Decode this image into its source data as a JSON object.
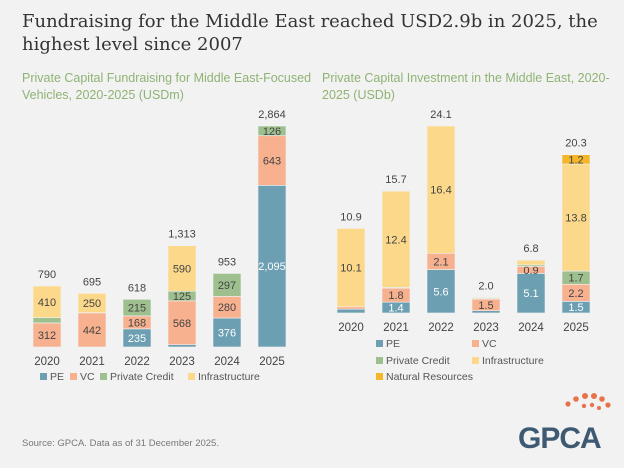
{
  "title": "Fundraising for the Middle East reached USD2.9b in 2025, the highest level since 2007",
  "source": "Source: GPCA. Data as of 31 December 2025.",
  "logo_text": "GPCA",
  "colors": {
    "PE": "#6c9fb1",
    "VC": "#f8b18f",
    "Private Credit": "#9dc08e",
    "Infrastructure": "#fcd88a",
    "Natural Resources": "#f5b62a"
  },
  "chart_data": [
    {
      "type": "bar",
      "stacked": true,
      "title": "Private Capital Fundraising for Middle East-Focused Vehicles, 2020-2025 (USDm)",
      "categories": [
        "2020",
        "2021",
        "2022",
        "2023",
        "2024",
        "2025"
      ],
      "series": [
        {
          "name": "PE",
          "values": [
            0,
            0,
            235,
            30,
            376,
            2095
          ],
          "labels": [
            null,
            null,
            "235",
            null,
            "376",
            "2,095"
          ]
        },
        {
          "name": "VC",
          "values": [
            312,
            442,
            168,
            568,
            280,
            643
          ],
          "labels": [
            "312",
            "442",
            "168",
            "568",
            "280",
            "643"
          ]
        },
        {
          "name": "Private Credit",
          "values": [
            68,
            3,
            215,
            125,
            297,
            126
          ],
          "labels": [
            null,
            null,
            "215",
            "125",
            "297",
            "126"
          ]
        },
        {
          "name": "Infrastructure",
          "values": [
            410,
            250,
            0,
            590,
            0,
            0
          ],
          "labels": [
            "410",
            "250",
            null,
            "590",
            null,
            null
          ]
        }
      ],
      "totals": [
        "790",
        "695",
        "618",
        "1,313",
        "953",
        "2,864"
      ],
      "ylim": [
        0,
        2864
      ],
      "legend": "bottom"
    },
    {
      "type": "bar",
      "stacked": true,
      "title": "Private Capital Investment in the Middle East, 2020-2025 (USDb)",
      "categories": [
        "2020",
        "2021",
        "2022",
        "2023",
        "2024",
        "2025"
      ],
      "series": [
        {
          "name": "PE",
          "values": [
            0.5,
            1.4,
            5.6,
            0.3,
            5.1,
            1.5
          ],
          "labels": [
            null,
            "1.4",
            "5.6",
            null,
            "5.1",
            "1.5"
          ]
        },
        {
          "name": "VC",
          "values": [
            0.3,
            1.8,
            2.1,
            1.5,
            0.9,
            2.2
          ],
          "labels": [
            null,
            "1.8",
            "2.1",
            "1.5",
            "0.9",
            "2.2"
          ]
        },
        {
          "name": "Private Credit",
          "values": [
            0,
            0.1,
            0,
            0.1,
            0.2,
            1.7
          ],
          "labels": [
            null,
            null,
            null,
            null,
            null,
            "1.7"
          ]
        },
        {
          "name": "Infrastructure",
          "values": [
            10.1,
            12.4,
            16.4,
            0.1,
            0.6,
            13.8
          ],
          "labels": [
            "10.1",
            "12.4",
            "16.4",
            null,
            null,
            "13.8"
          ]
        },
        {
          "name": "Natural Resources",
          "values": [
            0,
            0,
            0,
            0,
            0,
            1.2
          ],
          "labels": [
            null,
            null,
            null,
            null,
            null,
            "1.2"
          ]
        }
      ],
      "totals": [
        "10.9",
        "15.7",
        "24.1",
        "2.0",
        "6.8",
        "20.3"
      ],
      "ylim": [
        0,
        24.1
      ],
      "legend": "bottom"
    }
  ]
}
